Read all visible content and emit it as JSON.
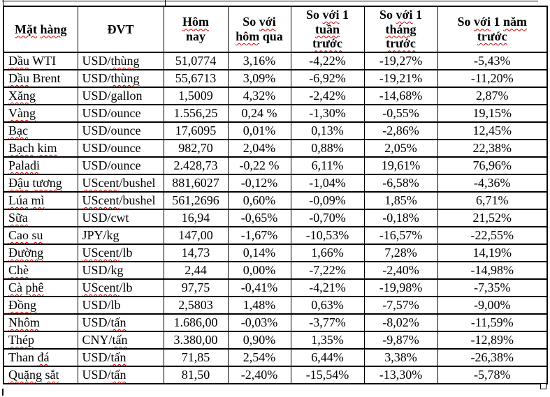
{
  "colors": {
    "squiggle": "#e00000",
    "border": "#000000",
    "text": "#000000",
    "background": "#ffffff"
  },
  "table": {
    "columns": [
      {
        "id": "commodity",
        "segments": [
          [
            "Mặt",
            true
          ],
          [
            " ",
            false
          ],
          [
            "hàng",
            true
          ]
        ]
      },
      {
        "id": "unit",
        "segments": [
          [
            "ĐVT",
            false
          ]
        ]
      },
      {
        "id": "today",
        "segments": [
          [
            "Hôm",
            true
          ],
          [
            "\n",
            false
          ],
          [
            "nay",
            false
          ]
        ]
      },
      {
        "id": "vs_yesterday",
        "segments": [
          [
            "So ",
            false
          ],
          [
            "với",
            true
          ],
          [
            "\n",
            false
          ],
          [
            "hôm",
            true
          ],
          [
            " qua",
            false
          ]
        ]
      },
      {
        "id": "vs_week",
        "segments": [
          [
            "So ",
            false
          ],
          [
            "với",
            true
          ],
          [
            " 1",
            false
          ],
          [
            "\n",
            false
          ],
          [
            "tuần",
            true
          ],
          [
            "\n",
            false
          ],
          [
            "trước",
            true
          ]
        ]
      },
      {
        "id": "vs_month",
        "segments": [
          [
            "So ",
            false
          ],
          [
            "với",
            true
          ],
          [
            " 1",
            false
          ],
          [
            "\n",
            false
          ],
          [
            "tháng",
            true
          ],
          [
            "\n",
            false
          ],
          [
            "trước",
            true
          ]
        ]
      },
      {
        "id": "vs_year",
        "segments": [
          [
            "So ",
            false
          ],
          [
            "với",
            true
          ],
          [
            " 1 ",
            false
          ],
          [
            "năm",
            true
          ],
          [
            "\n",
            false
          ],
          [
            "trước",
            true
          ]
        ]
      }
    ],
    "rows": [
      {
        "name": [
          [
            "Dầu",
            true
          ],
          [
            " WTI",
            false
          ]
        ],
        "unit": [
          [
            "USD/",
            false
          ],
          [
            "thùng",
            true
          ]
        ],
        "today": "51,0774",
        "vs_yesterday": "3,16%",
        "vs_week": "-4,22%",
        "vs_month": "-19,27%",
        "vs_year": "-5,43%"
      },
      {
        "name": [
          [
            "Dầu",
            true
          ],
          [
            " Brent",
            false
          ]
        ],
        "unit": [
          [
            "USD/",
            false
          ],
          [
            "thùng",
            true
          ]
        ],
        "today": "55,6713",
        "vs_yesterday": "3,09%",
        "vs_week": "-6,92%",
        "vs_month": "-19,21%",
        "vs_year": "-11,20%"
      },
      {
        "name": [
          [
            "Xăng",
            true
          ]
        ],
        "unit": [
          [
            "USD/gallon",
            false
          ]
        ],
        "today": "1,5009",
        "vs_yesterday": "4,32%",
        "vs_week": "-2,42%",
        "vs_month": "-14,68%",
        "vs_year": "2,87%"
      },
      {
        "name": [
          [
            "Vàng",
            true
          ]
        ],
        "unit": [
          [
            "USD/ounce",
            false
          ]
        ],
        "today": "1.556,25",
        "vs_yesterday": "0,24 %",
        "vs_week": "-1,30%",
        "vs_month": "-0,55%",
        "vs_year": "19,15%"
      },
      {
        "name": [
          [
            "Bạc",
            true
          ]
        ],
        "unit": [
          [
            "USD/ounce",
            false
          ]
        ],
        "today": "17,6095",
        "vs_yesterday": "0,01%",
        "vs_week": "0,13%",
        "vs_month": "-2,86%",
        "vs_year": "12,45%"
      },
      {
        "name": [
          [
            "Bạch",
            true
          ],
          [
            " ",
            false
          ],
          [
            "kim",
            true
          ]
        ],
        "unit": [
          [
            "USD/ounce",
            false
          ]
        ],
        "today": "982,70",
        "vs_yesterday": "2,04%",
        "vs_week": "0,88%",
        "vs_month": "2,05%",
        "vs_year": "22,38%"
      },
      {
        "name": [
          [
            "Paladi",
            true
          ]
        ],
        "unit": [
          [
            "USD/ounce",
            false
          ]
        ],
        "today": "2.428,73",
        "vs_yesterday": "-0,22 %",
        "vs_week": "6,11%",
        "vs_month": "19,61%",
        "vs_year": "76,96%"
      },
      {
        "name": [
          [
            "Đậu",
            true
          ],
          [
            " ",
            false
          ],
          [
            "tương",
            true
          ]
        ],
        "unit": [
          [
            "UScent",
            true
          ],
          [
            "/bushel",
            false
          ]
        ],
        "today": "881,6027",
        "vs_yesterday": "-0,12%",
        "vs_week": "-1,04%",
        "vs_month": "-6,58%",
        "vs_year": "-4,36%"
      },
      {
        "name": [
          [
            "Lúa",
            true
          ],
          [
            " ",
            false
          ],
          [
            "mì",
            true
          ]
        ],
        "unit": [
          [
            "UScent",
            true
          ],
          [
            "/bushel",
            false
          ]
        ],
        "today": "561,2696",
        "vs_yesterday": "0,60%",
        "vs_week": "-0,09%",
        "vs_month": "1,85%",
        "vs_year": "6,71%"
      },
      {
        "name": [
          [
            "Sữa",
            true
          ]
        ],
        "unit": [
          [
            "USD/cwt",
            false
          ]
        ],
        "today": "16,94",
        "vs_yesterday": "-0,65%",
        "vs_week": "-0,70%",
        "vs_month": "-0,18%",
        "vs_year": "21,52%"
      },
      {
        "name": [
          [
            "Cao",
            true
          ],
          [
            " ",
            false
          ],
          [
            "su",
            true
          ]
        ],
        "unit": [
          [
            "JPY/kg",
            false
          ]
        ],
        "today": "147,00",
        "vs_yesterday": "-1,67%",
        "vs_week": "-10,53%",
        "vs_month": "-16,57%",
        "vs_year": "-22,55%"
      },
      {
        "name": [
          [
            "Đường",
            true
          ]
        ],
        "unit": [
          [
            "UScent",
            true
          ],
          [
            "/lb",
            false
          ]
        ],
        "today": "14,73",
        "vs_yesterday": "0,14%",
        "vs_week": "1,66%",
        "vs_month": "7,28%",
        "vs_year": "14,19%"
      },
      {
        "name": [
          [
            "Chè",
            true
          ]
        ],
        "unit": [
          [
            "USD/kg",
            false
          ]
        ],
        "today": "2,44",
        "vs_yesterday": "0,00%",
        "vs_week": "-7,22%",
        "vs_month": "-2,40%",
        "vs_year": "-14,98%"
      },
      {
        "name": [
          [
            "Cà",
            true
          ],
          [
            " ",
            false
          ],
          [
            "phê",
            true
          ]
        ],
        "unit": [
          [
            "UScent",
            true
          ],
          [
            "/lb",
            false
          ]
        ],
        "today": "97,75",
        "vs_yesterday": "-0,41%",
        "vs_week": "-4,21%",
        "vs_month": "-19,98%",
        "vs_year": "-7,35%"
      },
      {
        "name": [
          [
            "Đồng",
            true
          ]
        ],
        "unit": [
          [
            "USD/lb",
            false
          ]
        ],
        "today": "2,5803",
        "vs_yesterday": "1,48%",
        "vs_week": "0,63%",
        "vs_month": "-7,57%",
        "vs_year": "-9,00%"
      },
      {
        "name": [
          [
            "Nhôm",
            true
          ]
        ],
        "unit": [
          [
            "USD/",
            false
          ],
          [
            "tấn",
            true
          ]
        ],
        "today": "1.686,00",
        "vs_yesterday": "-0,03%",
        "vs_week": "-3,77%",
        "vs_month": "-8,02%",
        "vs_year": "-11,59%"
      },
      {
        "name": [
          [
            "Thép",
            true
          ]
        ],
        "unit": [
          [
            "CNY/",
            false
          ],
          [
            "tấn",
            true
          ]
        ],
        "today": "3.380,00",
        "vs_yesterday": "0,90%",
        "vs_week": "1,35%",
        "vs_month": "-9,87%",
        "vs_year": "-12,89%"
      },
      {
        "name": [
          [
            "Than ",
            false
          ],
          [
            "đá",
            true
          ]
        ],
        "unit": [
          [
            "USD/",
            false
          ],
          [
            "tấn",
            true
          ]
        ],
        "today": "71,85",
        "vs_yesterday": "2,54%",
        "vs_week": "6,44%",
        "vs_month": "3,38%",
        "vs_year": "-26,38%"
      },
      {
        "name": [
          [
            "Quặng",
            true
          ],
          [
            " ",
            false
          ],
          [
            "sắt",
            true
          ]
        ],
        "unit": [
          [
            "USD/",
            false
          ],
          [
            "tấn",
            true
          ]
        ],
        "today": "81,50",
        "vs_yesterday": "-2,40%",
        "vs_week": "-15,54%",
        "vs_month": "-13,30%",
        "vs_year": "-5,78%"
      }
    ]
  }
}
